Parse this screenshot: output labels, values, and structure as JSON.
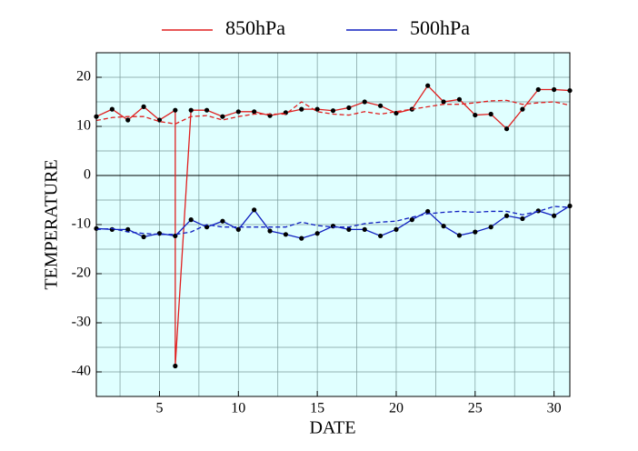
{
  "chart_data": {
    "type": "line",
    "xlabel": "DATE",
    "ylabel": "TEMPERATURE",
    "xlim": [
      1,
      31
    ],
    "ylim": [
      -45,
      25
    ],
    "xticks": [
      5,
      10,
      15,
      20,
      25,
      30
    ],
    "yticks": [
      -40,
      -30,
      -20,
      -10,
      0,
      10,
      20
    ],
    "x_minor_grid": [
      2.5,
      7.5,
      12.5,
      17.5,
      22.5,
      27.5
    ],
    "y_minor_grid": [
      -35,
      -25,
      -15,
      -5,
      5,
      15
    ],
    "grid": true,
    "hline": 0,
    "background": "#e0ffff",
    "legend": "top",
    "series": [
      {
        "name": "850hPa",
        "color": "#e02020",
        "dashed": false,
        "markers": true,
        "x": [
          1,
          2,
          3,
          4,
          5,
          6,
          6,
          7,
          8,
          9,
          10,
          11,
          12,
          13,
          14,
          15,
          16,
          17,
          18,
          19,
          20,
          21,
          22,
          23,
          24,
          25,
          26,
          27,
          28,
          29,
          30,
          31
        ],
        "values": [
          12.0,
          13.5,
          11.3,
          14.0,
          11.3,
          13.3,
          -38.8,
          13.3,
          13.3,
          12.0,
          13.0,
          13.0,
          12.2,
          12.8,
          13.5,
          13.5,
          13.2,
          13.8,
          15.0,
          14.2,
          12.7,
          13.5,
          18.3,
          15.0,
          15.5,
          12.3,
          12.5,
          9.5,
          13.5,
          17.5,
          17.5,
          17.3
        ]
      },
      {
        "name": "500hPa",
        "color": "#1020c0",
        "dashed": false,
        "markers": true,
        "x": [
          1,
          2,
          3,
          4,
          5,
          6,
          7,
          8,
          9,
          10,
          11,
          12,
          13,
          14,
          15,
          16,
          17,
          18,
          19,
          20,
          21,
          22,
          23,
          24,
          25,
          26,
          27,
          28,
          29,
          30,
          31
        ],
        "values": [
          -10.8,
          -11.0,
          -11.0,
          -12.5,
          -11.8,
          -12.3,
          -9.0,
          -10.5,
          -9.3,
          -11.0,
          -7.0,
          -11.3,
          -12.0,
          -12.8,
          -11.8,
          -10.3,
          -11.0,
          -11.0,
          -12.3,
          -11.0,
          -9.0,
          -7.3,
          -10.3,
          -12.2,
          -11.5,
          -10.5,
          -8.2,
          -8.8,
          -7.2,
          -8.2,
          -6.2
        ]
      },
      {
        "color": "#e02020",
        "dashed": true,
        "markers": false,
        "x": [
          1,
          2,
          3,
          4,
          5,
          6,
          7,
          8,
          9,
          10,
          11,
          12,
          13,
          14,
          15,
          16,
          17,
          18,
          19,
          20,
          21,
          22,
          23,
          24,
          25,
          26,
          27,
          28,
          29,
          30,
          31
        ],
        "values": [
          11.2,
          11.8,
          12.0,
          12.0,
          11.0,
          10.5,
          12.0,
          12.2,
          11.3,
          12.0,
          12.5,
          12.5,
          12.5,
          15.0,
          13.0,
          12.5,
          12.3,
          13.0,
          12.5,
          13.0,
          13.5,
          14.0,
          14.5,
          14.5,
          14.8,
          15.2,
          15.3,
          14.5,
          14.8,
          15.0,
          14.3
        ]
      },
      {
        "color": "#1020c0",
        "dashed": true,
        "markers": false,
        "x": [
          1,
          2,
          3,
          4,
          5,
          6,
          7,
          8,
          9,
          10,
          11,
          12,
          13,
          14,
          15,
          16,
          17,
          18,
          19,
          20,
          21,
          22,
          23,
          24,
          25,
          26,
          27,
          28,
          29,
          30,
          31
        ],
        "values": [
          -11.0,
          -10.8,
          -11.5,
          -11.8,
          -12.0,
          -12.0,
          -11.5,
          -10.0,
          -10.5,
          -10.5,
          -10.5,
          -10.5,
          -10.5,
          -9.5,
          -10.2,
          -10.5,
          -10.5,
          -9.8,
          -9.5,
          -9.3,
          -8.5,
          -7.8,
          -7.5,
          -7.3,
          -7.5,
          -7.3,
          -7.3,
          -8.0,
          -7.3,
          -6.3,
          -6.5
        ]
      }
    ]
  }
}
